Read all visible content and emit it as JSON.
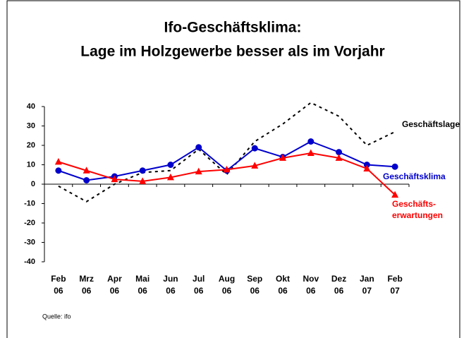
{
  "chart_data": {
    "type": "line",
    "title": [
      "Ifo-Geschäftsklima:",
      "Lage im Holzgewerbe besser als im Vorjahr"
    ],
    "categories": [
      "Feb\n06",
      "Mrz\n06",
      "Apr\n06",
      "Mai\n06",
      "Jun\n06",
      "Jul\n06",
      "Aug\n06",
      "Sep\n06",
      "Okt\n06",
      "Nov\n06",
      "Dez\n06",
      "Jan\n07",
      "Feb\n07"
    ],
    "series": [
      {
        "name": "Geschäftslage",
        "color": "#000000",
        "dashed": true,
        "marker": "none",
        "values": [
          -1,
          -9,
          0,
          6,
          7,
          18,
          5,
          22,
          31,
          42,
          35,
          20,
          27
        ]
      },
      {
        "name": "Geschäftsklima",
        "color": "#0000cc",
        "marker": "circle",
        "values": [
          7,
          2,
          4,
          7,
          10,
          19,
          7,
          18.5,
          14,
          22,
          16.5,
          10,
          9
        ]
      },
      {
        "name": "Geschäfts-\nerwartungen",
        "color": "#ff0000",
        "marker": "triangle",
        "values": [
          11.5,
          7,
          2.5,
          1.5,
          3.5,
          6.5,
          7.5,
          9.5,
          13.5,
          16,
          13.5,
          8,
          -5.5
        ]
      }
    ],
    "ylim": [
      -40,
      40
    ],
    "yticks": [
      -40,
      -30,
      -20,
      -10,
      0,
      10,
      20,
      30,
      40
    ],
    "source": "Quelle: ifo"
  }
}
